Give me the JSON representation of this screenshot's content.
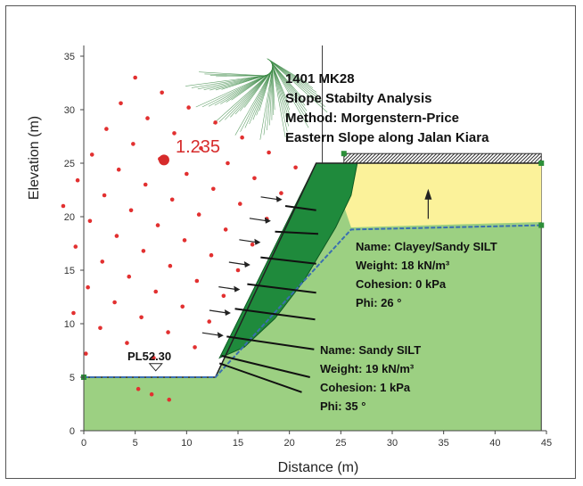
{
  "chart_data": {
    "type": "slope-stability-section",
    "title_lines": [
      "1401 MK28",
      "Slope Stabilty Analysis",
      "Method: Morgenstern-Price",
      "Eastern Slope along Jalan Kiara"
    ],
    "xlabel": "Distance (m)",
    "ylabel": "Elevation (m)",
    "xlim": [
      0,
      45
    ],
    "ylim": [
      0,
      36
    ],
    "xticks": [
      "0",
      "5",
      "10",
      "15",
      "20",
      "25",
      "30",
      "35",
      "40",
      "45"
    ],
    "yticks": [
      "0",
      "5",
      "10",
      "15",
      "20",
      "25",
      "30",
      "35"
    ],
    "factor_of_safety": "1.235",
    "critical_center": [
      7.8,
      25.3
    ],
    "water_table_label": "PL52.30",
    "materials": [
      {
        "lines": [
          "Name: Clayey/Sandy SILT",
          "Weight: 18 kN/m³",
          "Cohesion: 0 kPa",
          "Phi: 26 °"
        ]
      },
      {
        "lines": [
          "Name: Sandy SILT",
          "Weight: 19 kN/m³",
          "Cohesion: 1 kPa",
          "Phi: 35 °"
        ]
      }
    ],
    "ground_profile": [
      [
        0,
        5
      ],
      [
        12.8,
        5
      ],
      [
        22.6,
        25
      ],
      [
        44.5,
        25
      ]
    ],
    "soil_interface": [
      [
        0,
        5
      ],
      [
        12.8,
        5
      ],
      [
        26,
        19
      ],
      [
        44.5,
        19.5
      ]
    ],
    "piezometric_line": [
      [
        0,
        5
      ],
      [
        12.8,
        5
      ],
      [
        26,
        18.8
      ],
      [
        44.5,
        19.2
      ]
    ],
    "colors": {
      "lower_soil": "#9cd082",
      "upper_soil": "#fbf29a",
      "slip_mass": "#1f8a3c",
      "grid_points": "#e23030",
      "piezometric": "#3a6fb0",
      "fos_label": "#d62b2b"
    }
  }
}
